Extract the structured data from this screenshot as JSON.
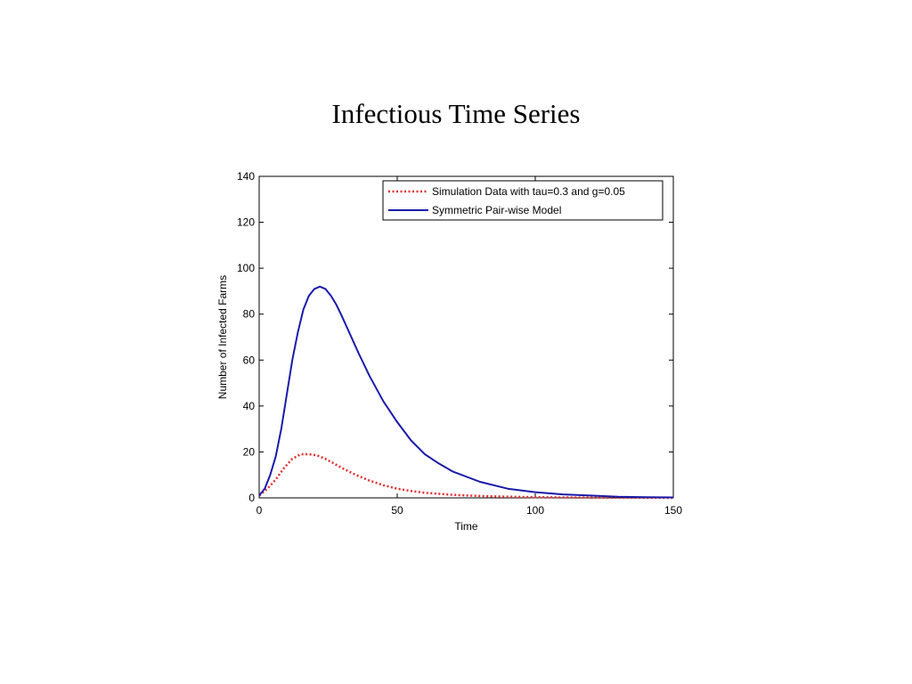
{
  "chart_data": {
    "type": "line",
    "title": "Infectious Time Series",
    "xlabel": "Time",
    "ylabel": "Number of Infected Farms",
    "xlim": [
      0,
      150
    ],
    "ylim": [
      0,
      140
    ],
    "xticks": [
      0,
      50,
      100,
      150
    ],
    "yticks": [
      0,
      20,
      40,
      60,
      80,
      100,
      120,
      140
    ],
    "grid": false,
    "legend_position": "top-right",
    "series": [
      {
        "name": "Simulation Data with tau=0.3 and g=0.05",
        "color": "#e03030",
        "style": "dotted",
        "x": [
          0,
          3,
          6,
          9,
          12,
          15,
          18,
          21,
          24,
          27,
          30,
          35,
          40,
          45,
          50,
          55,
          60,
          70,
          80,
          90,
          100,
          110,
          120,
          130,
          140,
          150
        ],
        "y": [
          1,
          4,
          8,
          13,
          17,
          19,
          19,
          18.5,
          17,
          15,
          13,
          10,
          7.5,
          5.5,
          4,
          3,
          2.2,
          1.3,
          0.8,
          0.5,
          0.3,
          0.2,
          0.1,
          0.1,
          0,
          0
        ]
      },
      {
        "name": "Symmetric Pair-wise Model",
        "color": "#1a1aaa",
        "style": "solid",
        "x": [
          0,
          2,
          4,
          6,
          8,
          10,
          12,
          14,
          16,
          18,
          20,
          22,
          24,
          26,
          28,
          30,
          33,
          36,
          40,
          45,
          50,
          55,
          60,
          65,
          70,
          80,
          90,
          100,
          110,
          120,
          130,
          140,
          150
        ],
        "y": [
          1,
          4,
          10,
          18,
          30,
          45,
          60,
          72,
          82,
          88,
          91,
          92,
          91,
          88,
          84,
          79,
          71,
          63,
          53,
          42,
          33,
          25,
          19,
          15,
          11.5,
          7,
          4,
          2.5,
          1.5,
          1,
          0.5,
          0.3,
          0.2
        ]
      }
    ]
  }
}
